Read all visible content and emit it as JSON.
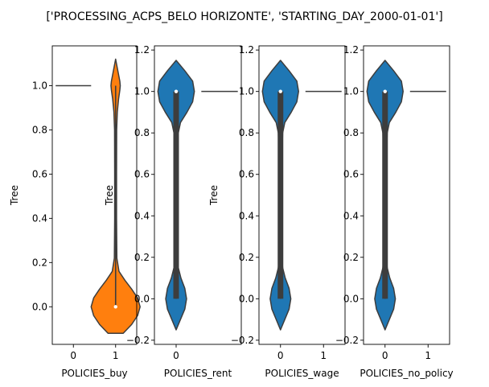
{
  "suptitle": "['PROCESSING_ACPS_BELO HORIZONTE', 'STARTING_DAY_2000-01-01']",
  "chart_data": [
    {
      "type": "violin",
      "xlabel": "POLICIES_buy",
      "ylabel": "Tree",
      "categories": [
        "0",
        "1"
      ],
      "ylim": [
        -0.17,
        1.18
      ],
      "yticks": [
        0.0,
        0.2,
        0.4,
        0.6,
        0.8,
        1.0
      ],
      "ytick_labels": [
        "0.0",
        "0.2",
        "0.4",
        "0.6",
        "0.8",
        "1.0"
      ],
      "series": [
        {
          "category": "0",
          "kind": "line",
          "value": 1.0,
          "color": "#1f77b4"
        },
        {
          "category": "1",
          "kind": "violin",
          "color": "#ff7f0e",
          "min": -0.12,
          "max": 1.12,
          "profile": [
            [
              -0.12,
              0.18
            ],
            [
              -0.08,
              0.38
            ],
            [
              -0.04,
              0.52
            ],
            [
              0.0,
              0.58
            ],
            [
              0.04,
              0.52
            ],
            [
              0.08,
              0.38
            ],
            [
              0.12,
              0.22
            ],
            [
              0.16,
              0.08
            ],
            [
              0.22,
              0.03
            ],
            [
              0.4,
              0.022
            ],
            [
              0.6,
              0.022
            ],
            [
              0.8,
              0.025
            ],
            [
              0.88,
              0.04
            ],
            [
              0.94,
              0.07
            ],
            [
              0.98,
              0.1
            ],
            [
              1.0,
              0.11
            ],
            [
              1.02,
              0.1
            ],
            [
              1.06,
              0.06
            ],
            [
              1.12,
              0.0
            ]
          ],
          "q1": 0.0,
          "median": 0.0,
          "q3": 0.0,
          "whisker_low": 0.0,
          "whisker_high": 1.0
        }
      ]
    },
    {
      "type": "violin",
      "xlabel": "POLICIES_rent",
      "ylabel": "Tree",
      "categories": [
        "0"
      ],
      "ylim": [
        -0.22,
        1.22
      ],
      "yticks": [
        -0.2,
        0.0,
        0.2,
        0.4,
        0.6,
        0.8,
        1.0,
        1.2
      ],
      "ytick_labels": [
        "−0.2",
        "0.0",
        "0.2",
        "0.4",
        "0.6",
        "0.8",
        "1.0",
        "1.2"
      ],
      "series": [
        {
          "category": "0",
          "kind": "violin",
          "color": "#1f77b4",
          "min": -0.15,
          "max": 1.15,
          "profile": [
            [
              -0.15,
              0.0
            ],
            [
              -0.1,
              0.1
            ],
            [
              -0.05,
              0.2
            ],
            [
              0.0,
              0.24
            ],
            [
              0.05,
              0.2
            ],
            [
              0.1,
              0.11
            ],
            [
              0.15,
              0.05
            ],
            [
              0.2,
              0.03
            ],
            [
              0.35,
              0.025
            ],
            [
              0.5,
              0.025
            ],
            [
              0.65,
              0.03
            ],
            [
              0.8,
              0.05
            ],
            [
              0.85,
              0.1
            ],
            [
              0.9,
              0.25
            ],
            [
              0.95,
              0.38
            ],
            [
              1.0,
              0.42
            ],
            [
              1.05,
              0.38
            ],
            [
              1.1,
              0.2
            ],
            [
              1.15,
              0.0
            ]
          ],
          "q1": 0.0,
          "median": 1.0,
          "q3": 1.0,
          "whisker_low": 0.0,
          "whisker_high": 1.0
        },
        {
          "category": "1",
          "kind": "line",
          "value": 1.0,
          "color": "#1f77b4"
        }
      ]
    },
    {
      "type": "violin",
      "xlabel": "POLICIES_wage",
      "ylabel": "Tree",
      "categories": [
        "0",
        "1"
      ],
      "ylim": [
        -0.22,
        1.22
      ],
      "yticks": [
        -0.2,
        0.0,
        0.2,
        0.4,
        0.6,
        0.8,
        1.0,
        1.2
      ],
      "ytick_labels": [
        "−0.2",
        "0.0",
        "0.2",
        "0.4",
        "0.6",
        "0.8",
        "1.0",
        "1.2"
      ],
      "series": [
        {
          "category": "0",
          "kind": "violin",
          "color": "#1f77b4",
          "min": -0.15,
          "max": 1.15,
          "profile": [
            [
              -0.15,
              0.0
            ],
            [
              -0.1,
              0.1
            ],
            [
              -0.05,
              0.2
            ],
            [
              0.0,
              0.24
            ],
            [
              0.05,
              0.2
            ],
            [
              0.1,
              0.11
            ],
            [
              0.15,
              0.05
            ],
            [
              0.2,
              0.03
            ],
            [
              0.35,
              0.025
            ],
            [
              0.5,
              0.025
            ],
            [
              0.65,
              0.03
            ],
            [
              0.8,
              0.05
            ],
            [
              0.85,
              0.1
            ],
            [
              0.9,
              0.25
            ],
            [
              0.95,
              0.38
            ],
            [
              1.0,
              0.42
            ],
            [
              1.05,
              0.38
            ],
            [
              1.1,
              0.2
            ],
            [
              1.15,
              0.0
            ]
          ],
          "q1": 0.0,
          "median": 1.0,
          "q3": 1.0,
          "whisker_low": 0.0,
          "whisker_high": 1.0
        },
        {
          "category": "1",
          "kind": "line",
          "value": 1.0,
          "color": "#1f77b4"
        }
      ]
    },
    {
      "type": "violin",
      "xlabel": "POLICIES_no_policy",
      "ylabel": "",
      "categories": [
        "0",
        "1"
      ],
      "ylim": [
        -0.22,
        1.22
      ],
      "yticks": [
        -0.2,
        0.0,
        0.2,
        0.4,
        0.6,
        0.8,
        1.0,
        1.2
      ],
      "ytick_labels": [
        "−0.2",
        "0.0",
        "0.2",
        "0.4",
        "0.6",
        "0.8",
        "1.0",
        "1.2"
      ],
      "series": [
        {
          "category": "0",
          "kind": "violin",
          "color": "#1f77b4",
          "min": -0.15,
          "max": 1.15,
          "profile": [
            [
              -0.15,
              0.0
            ],
            [
              -0.1,
              0.1
            ],
            [
              -0.05,
              0.2
            ],
            [
              0.0,
              0.24
            ],
            [
              0.05,
              0.2
            ],
            [
              0.1,
              0.11
            ],
            [
              0.15,
              0.05
            ],
            [
              0.2,
              0.03
            ],
            [
              0.35,
              0.025
            ],
            [
              0.5,
              0.025
            ],
            [
              0.65,
              0.03
            ],
            [
              0.8,
              0.05
            ],
            [
              0.85,
              0.1
            ],
            [
              0.9,
              0.25
            ],
            [
              0.95,
              0.38
            ],
            [
              1.0,
              0.42
            ],
            [
              1.05,
              0.38
            ],
            [
              1.1,
              0.2
            ],
            [
              1.15,
              0.0
            ]
          ],
          "q1": 0.0,
          "median": 1.0,
          "q3": 1.0,
          "whisker_low": 0.0,
          "whisker_high": 1.0
        },
        {
          "category": "1",
          "kind": "line",
          "value": 1.0,
          "color": "#1f77b4"
        }
      ]
    }
  ]
}
